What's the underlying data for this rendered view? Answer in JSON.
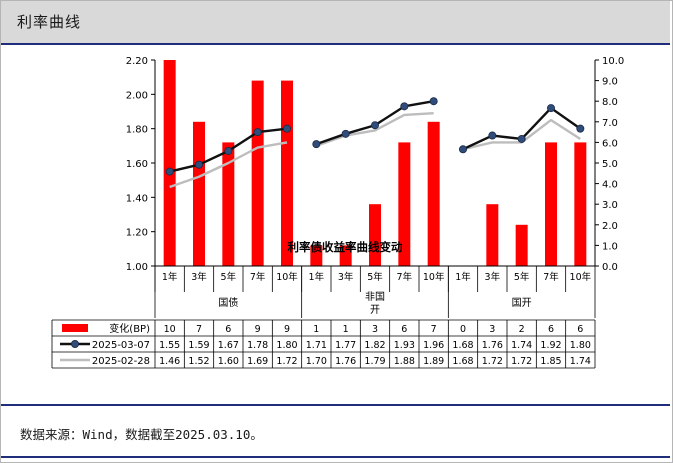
{
  "page": {
    "title": "利率曲线",
    "source": "数据来源：Wind，数据截至2025.03.10。"
  },
  "colors": {
    "bar": "#ff0000",
    "line_current": "#111111",
    "marker_current": "#2f4c7a",
    "line_prev": "#bdbdbd",
    "header_bg": "#d9d9d9",
    "rule": "#1f2d7a"
  },
  "chart_data": {
    "type": "bar+line",
    "overlay_title": "利率债收益率曲线变动",
    "categories": [
      "1年",
      "3年",
      "5年",
      "7年",
      "10年",
      "1年",
      "3年",
      "5年",
      "7年",
      "10年",
      "1年",
      "3年",
      "5年",
      "7年",
      "10年"
    ],
    "groups": [
      {
        "label": "国债",
        "start": 0,
        "end": 4
      },
      {
        "label": "非国\n开",
        "start": 5,
        "end": 9
      },
      {
        "label": "国开",
        "start": 10,
        "end": 14
      }
    ],
    "y_left": {
      "min": 1.0,
      "max": 2.2,
      "step": 0.2,
      "ticks": [
        "1.00",
        "1.20",
        "1.40",
        "1.60",
        "1.80",
        "2.00",
        "2.20"
      ]
    },
    "y_right": {
      "min": 0.0,
      "max": 10.0,
      "step": 1.0,
      "ticks": [
        "0.0",
        "1.0",
        "2.0",
        "3.0",
        "4.0",
        "5.0",
        "6.0",
        "7.0",
        "8.0",
        "9.0",
        "10.0"
      ]
    },
    "series": [
      {
        "name": "变化(BP)",
        "kind": "bar",
        "axis": "right",
        "values": [
          10,
          7,
          6,
          9,
          9,
          1,
          1,
          3,
          6,
          7,
          0,
          3,
          2,
          6,
          6
        ]
      },
      {
        "name": "2025-03-07",
        "kind": "line",
        "axis": "left",
        "values": [
          1.55,
          1.59,
          1.67,
          1.78,
          1.8,
          1.71,
          1.77,
          1.82,
          1.93,
          1.96,
          1.68,
          1.76,
          1.74,
          1.92,
          1.8
        ]
      },
      {
        "name": "2025-02-28",
        "kind": "line",
        "axis": "left",
        "values": [
          1.46,
          1.52,
          1.6,
          1.69,
          1.72,
          1.7,
          1.76,
          1.79,
          1.88,
          1.89,
          1.68,
          1.72,
          1.72,
          1.85,
          1.74
        ]
      }
    ],
    "table_cells": [
      [
        "10",
        "7",
        "6",
        "9",
        "9",
        "1",
        "1",
        "3",
        "6",
        "7",
        "0",
        "3",
        "2",
        "6",
        "6"
      ],
      [
        "1.55",
        "1.59",
        "1.67",
        "1.78",
        "1.80",
        "1.71",
        "1.77",
        "1.82",
        "1.93",
        "1.96",
        "1.68",
        "1.76",
        "1.74",
        "1.92",
        "1.80"
      ],
      [
        "1.46",
        "1.52",
        "1.60",
        "1.69",
        "1.72",
        "1.70",
        "1.76",
        "1.79",
        "1.88",
        "1.89",
        "1.68",
        "1.72",
        "1.72",
        "1.85",
        "1.74"
      ]
    ]
  }
}
